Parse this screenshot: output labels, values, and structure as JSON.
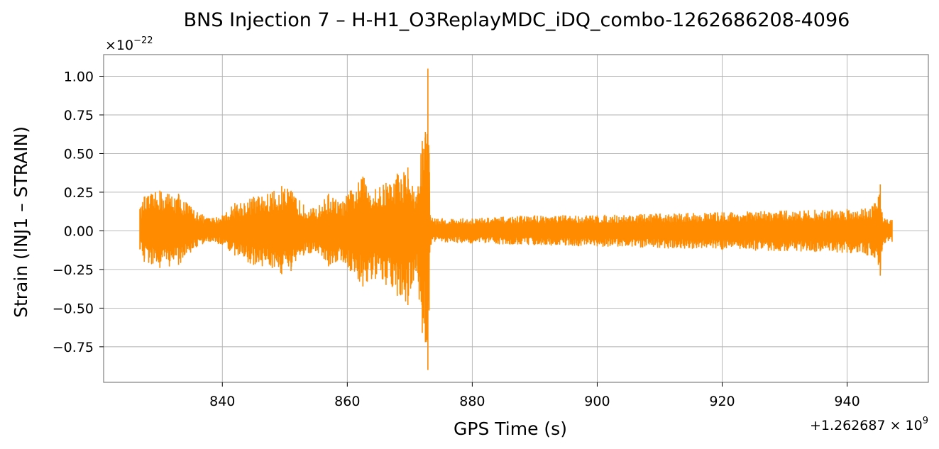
{
  "colors": {
    "series": "#ff8c00",
    "grid": "#b0b0b0",
    "spine": "#808080",
    "text": "#000000"
  },
  "chart_data": {
    "type": "line",
    "title": "BNS Injection 7 – H-H1_O3ReplayMDC_iDQ_combo-1262686208-4096",
    "xlabel": "GPS Time (s)",
    "ylabel": "Strain (INJ1 – STRAIN)",
    "y_multiplier_base": "×10",
    "y_multiplier_exp": "−22",
    "x_offset_base": "+1.262687 × 10",
    "x_offset_exp": "9",
    "xlim": [
      821,
      953
    ],
    "ylim": [
      -0.98,
      1.14
    ],
    "xticks": [
      840,
      860,
      880,
      900,
      920,
      940
    ],
    "xtick_labels": [
      "840",
      "860",
      "880",
      "900",
      "920",
      "940"
    ],
    "yticks": [
      1.0,
      0.75,
      0.5,
      0.25,
      0.0,
      -0.25,
      -0.5,
      -0.75
    ],
    "ytick_labels": [
      "1.00",
      "0.75",
      "0.50",
      "0.25",
      "0.00",
      "−0.25",
      "−0.50",
      "−0.75"
    ],
    "grid": true,
    "series": [
      {
        "x_range": [
          826.8,
          947.2
        ],
        "envelope": {
          "x": [
            826.8,
            827.5,
            830,
            833,
            836,
            838,
            840,
            842,
            845,
            848,
            849.5,
            851,
            853,
            855,
            857,
            859,
            860.5,
            862.5,
            864.5,
            866.2,
            868,
            869.7,
            871,
            872,
            872.5,
            872.9,
            873.1,
            873.3,
            874,
            880,
            890,
            900,
            910,
            920,
            930,
            940,
            944,
            945,
            945.3,
            945.6,
            946,
            947.2
          ],
          "upper": [
            0.14,
            0.22,
            0.26,
            0.24,
            0.12,
            0.08,
            0.1,
            0.18,
            0.22,
            0.25,
            0.29,
            0.26,
            0.17,
            0.14,
            0.24,
            0.18,
            0.26,
            0.35,
            0.27,
            0.31,
            0.37,
            0.41,
            0.22,
            0.58,
            0.64,
            1.05,
            0.5,
            0.09,
            0.08,
            0.08,
            0.1,
            0.1,
            0.11,
            0.12,
            0.13,
            0.14,
            0.16,
            0.22,
            0.3,
            0.12,
            0.08,
            0.07
          ],
          "lower": [
            -0.12,
            -0.2,
            -0.24,
            -0.22,
            -0.1,
            -0.07,
            -0.09,
            -0.16,
            -0.22,
            -0.24,
            -0.28,
            -0.26,
            -0.16,
            -0.13,
            -0.23,
            -0.19,
            -0.26,
            -0.36,
            -0.31,
            -0.35,
            -0.42,
            -0.48,
            -0.26,
            -0.66,
            -0.72,
            -0.9,
            -0.5,
            -0.09,
            -0.07,
            -0.08,
            -0.09,
            -0.1,
            -0.11,
            -0.12,
            -0.13,
            -0.14,
            -0.16,
            -0.22,
            -0.29,
            -0.12,
            -0.08,
            -0.07
          ]
        }
      }
    ]
  }
}
